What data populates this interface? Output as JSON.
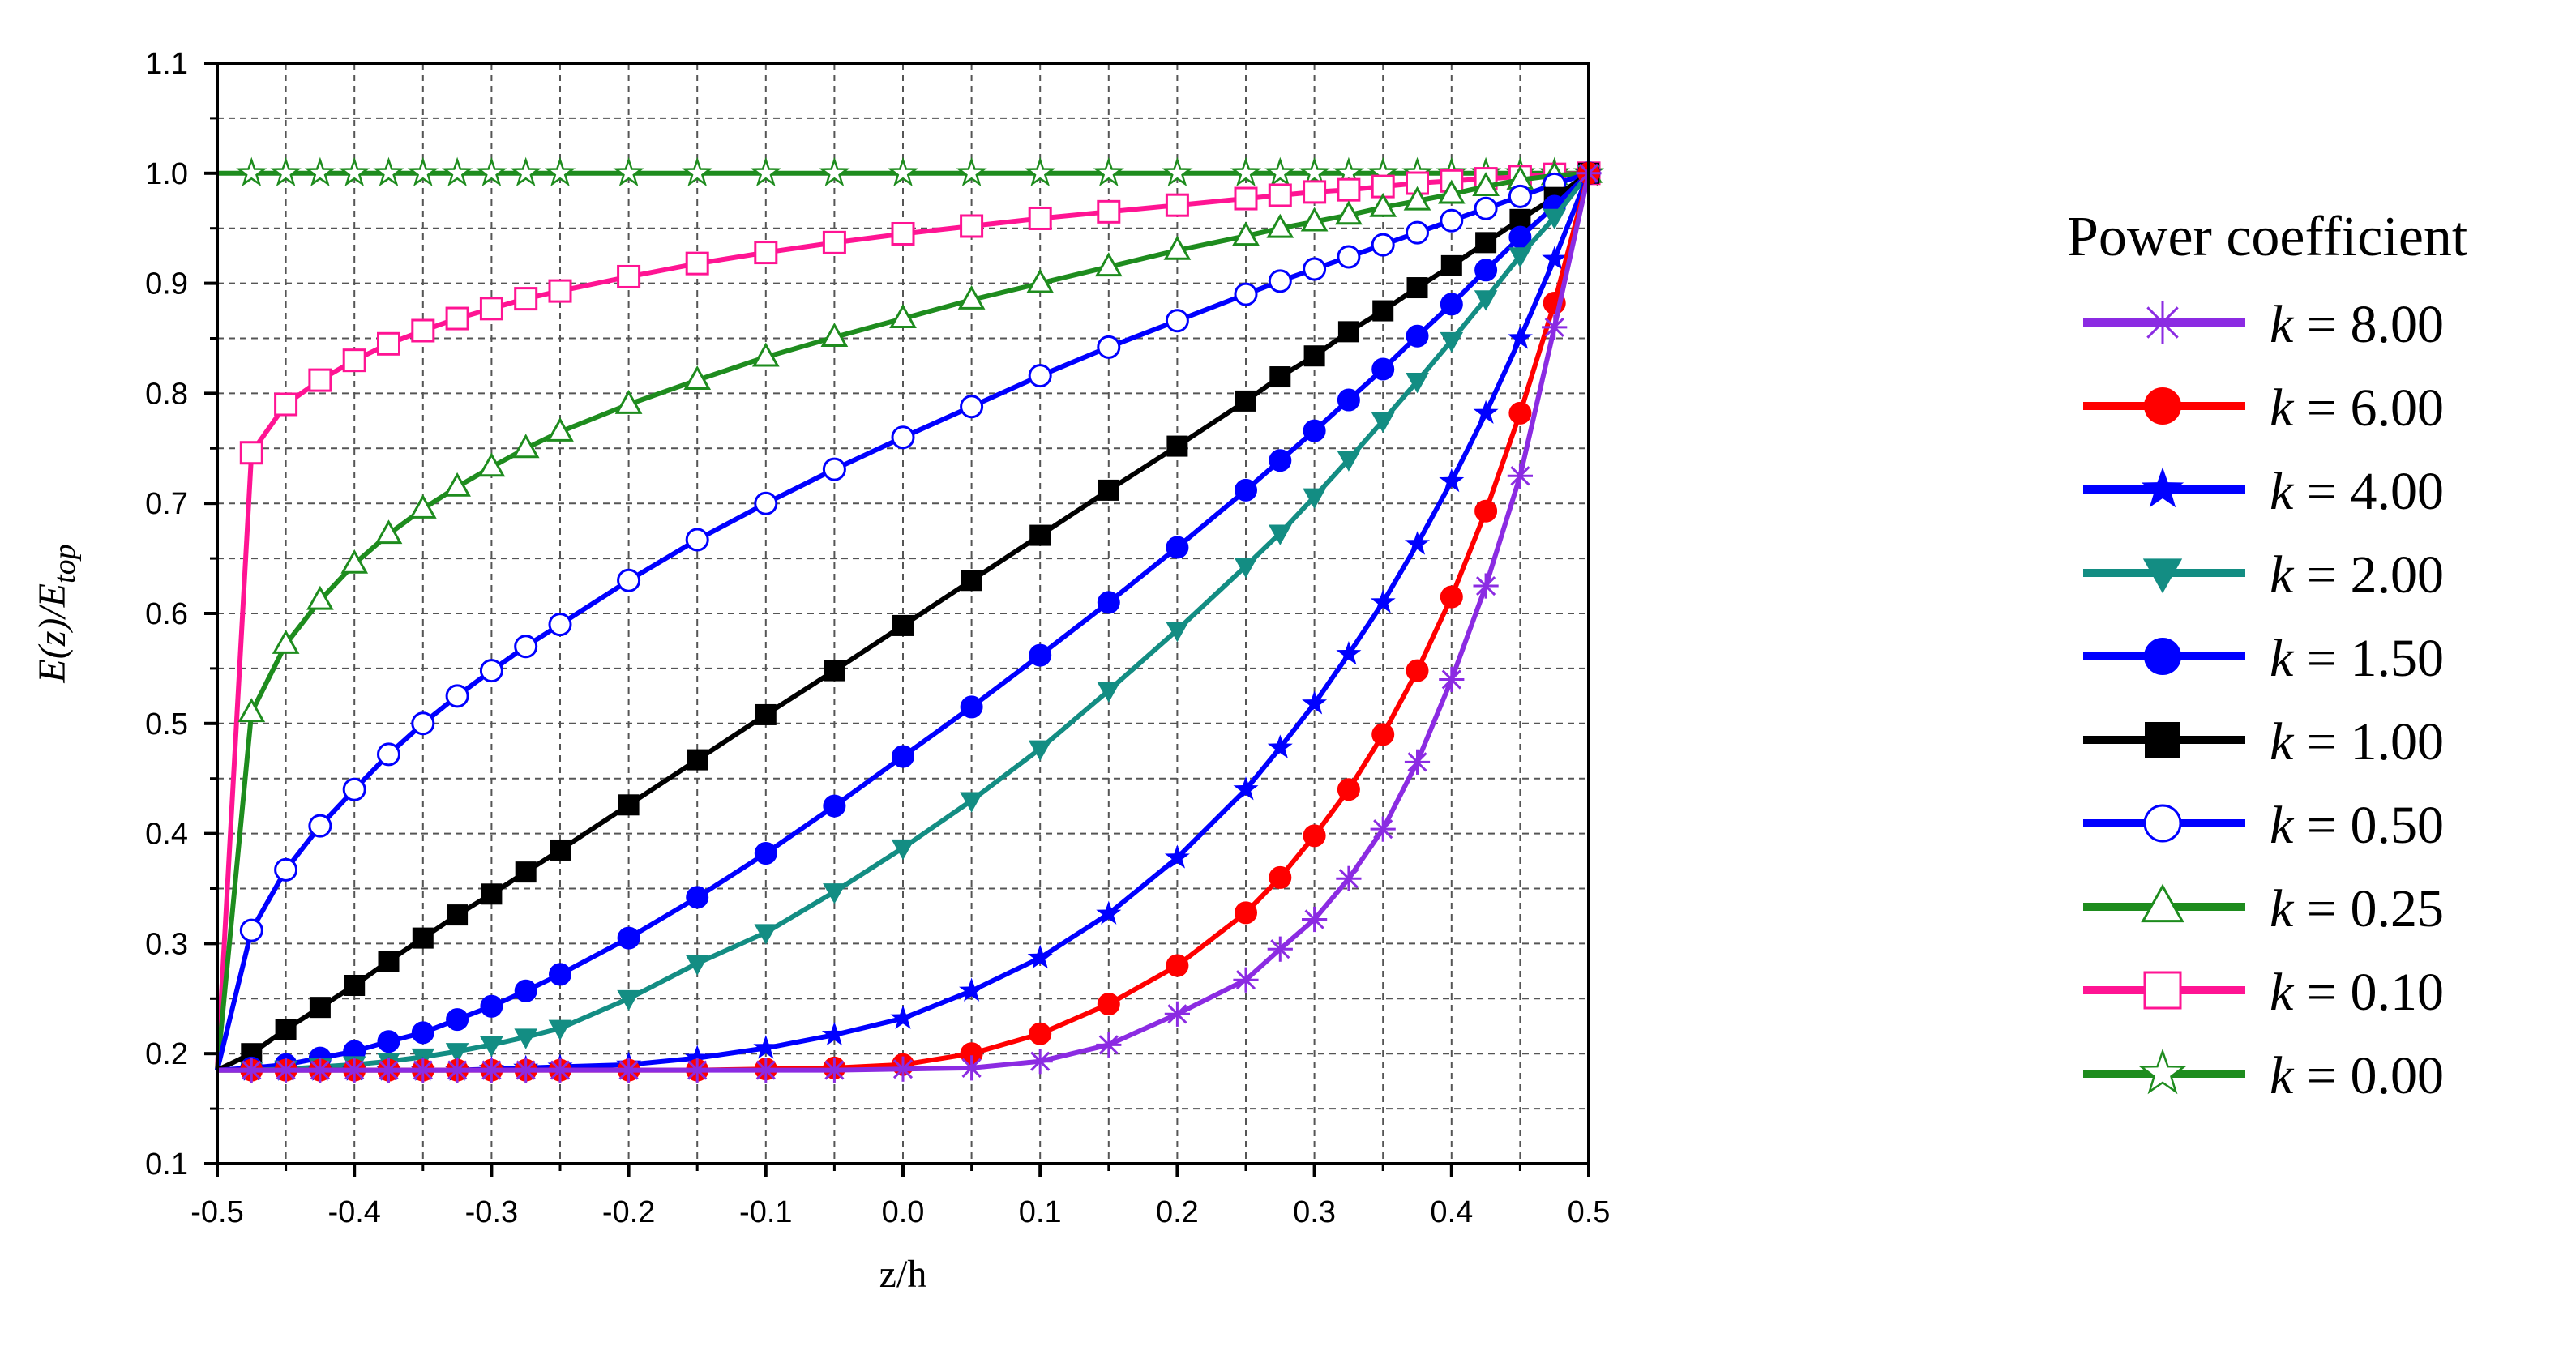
{
  "chart_data": {
    "type": "line",
    "title": "",
    "xlabel": "z/h",
    "ylabel_main": "E(z)/E",
    "ylabel_sub": "top",
    "xlim": [
      -0.5,
      0.5
    ],
    "ylim": [
      0.1,
      1.1
    ],
    "xticks": [
      -0.5,
      -0.4,
      -0.3,
      -0.2,
      -0.1,
      0.0,
      0.1,
      0.2,
      0.3,
      0.4,
      0.5
    ],
    "yticks": [
      0.1,
      0.2,
      0.3,
      0.4,
      0.5,
      0.6,
      0.7,
      0.8,
      0.9,
      1.0,
      1.1
    ],
    "grid": "dashed minor and major",
    "legend_title": "Power coefficient",
    "legend_placement": "right",
    "x": [
      -0.5,
      -0.475,
      -0.45,
      -0.425,
      -0.4,
      -0.375,
      -0.35,
      -0.325,
      -0.3,
      -0.275,
      -0.25,
      -0.2,
      -0.15,
      -0.1,
      -0.05,
      0.0,
      0.05,
      0.1,
      0.15,
      0.2,
      0.25,
      0.275,
      0.3,
      0.325,
      0.35,
      0.375,
      0.4,
      0.425,
      0.45,
      0.475,
      0.5
    ],
    "series": [
      {
        "name": "k = 8.00",
        "k": "8.00",
        "color": "#8b2be2",
        "marker": "asterisk",
        "values": [
          0.185,
          0.185,
          0.185,
          0.185,
          0.185,
          0.185,
          0.185,
          0.185,
          0.185,
          0.185,
          0.185,
          0.185,
          0.185,
          0.185,
          0.185,
          0.186,
          0.187,
          0.193,
          0.208,
          0.236,
          0.267,
          0.295,
          0.322,
          0.359,
          0.404,
          0.465,
          0.54,
          0.625,
          0.725,
          0.86,
          1.0
        ]
      },
      {
        "name": "k = 6.00",
        "k": "6.00",
        "color": "#ff0000",
        "marker": "circle-filled",
        "values": [
          0.185,
          0.185,
          0.185,
          0.185,
          0.185,
          0.185,
          0.185,
          0.185,
          0.185,
          0.185,
          0.185,
          0.185,
          0.185,
          0.186,
          0.187,
          0.19,
          0.2,
          0.218,
          0.245,
          0.28,
          0.328,
          0.36,
          0.398,
          0.44,
          0.49,
          0.548,
          0.615,
          0.693,
          0.782,
          0.882,
          1.0
        ]
      },
      {
        "name": "k = 4.00",
        "k": "4.00",
        "color": "#0000ff",
        "marker": "star-filled",
        "values": [
          0.185,
          0.185,
          0.185,
          0.185,
          0.185,
          0.185,
          0.185,
          0.185,
          0.186,
          0.187,
          0.188,
          0.19,
          0.196,
          0.205,
          0.217,
          0.232,
          0.257,
          0.287,
          0.327,
          0.378,
          0.44,
          0.478,
          0.518,
          0.563,
          0.61,
          0.663,
          0.72,
          0.782,
          0.85,
          0.922,
          1.0
        ]
      },
      {
        "name": "k = 2.00",
        "k": "2.00",
        "color": "#138d83",
        "marker": "triangle-down-filled",
        "values": [
          0.185,
          0.185,
          0.186,
          0.188,
          0.19,
          0.193,
          0.197,
          0.202,
          0.208,
          0.215,
          0.223,
          0.25,
          0.282,
          0.31,
          0.347,
          0.387,
          0.43,
          0.477,
          0.53,
          0.585,
          0.643,
          0.673,
          0.706,
          0.74,
          0.775,
          0.811,
          0.848,
          0.886,
          0.925,
          0.96,
          1.0
        ]
      },
      {
        "name": "k = 1.50",
        "k": "1.50",
        "color": "#0000ff",
        "marker": "circle-filled",
        "values": [
          0.185,
          0.187,
          0.19,
          0.196,
          0.202,
          0.211,
          0.219,
          0.231,
          0.243,
          0.257,
          0.272,
          0.305,
          0.342,
          0.382,
          0.425,
          0.47,
          0.515,
          0.562,
          0.61,
          0.66,
          0.712,
          0.739,
          0.766,
          0.794,
          0.822,
          0.852,
          0.881,
          0.912,
          0.942,
          0.97,
          1.0
        ]
      },
      {
        "name": "k = 1.00",
        "k": "1.00",
        "color": "#000000",
        "marker": "square-filled",
        "values": [
          0.185,
          0.2,
          0.222,
          0.242,
          0.262,
          0.284,
          0.305,
          0.326,
          0.345,
          0.365,
          0.385,
          0.426,
          0.467,
          0.508,
          0.548,
          0.589,
          0.63,
          0.671,
          0.712,
          0.752,
          0.793,
          0.815,
          0.834,
          0.856,
          0.875,
          0.896,
          0.916,
          0.937,
          0.958,
          0.978,
          1.0
        ]
      },
      {
        "name": "k = 0.50",
        "k": "0.50",
        "color": "#0000ff",
        "marker": "circle-open",
        "values": [
          0.185,
          0.312,
          0.367,
          0.407,
          0.44,
          0.472,
          0.5,
          0.525,
          0.548,
          0.57,
          0.59,
          0.63,
          0.667,
          0.7,
          0.731,
          0.76,
          0.788,
          0.816,
          0.842,
          0.866,
          0.89,
          0.902,
          0.913,
          0.924,
          0.935,
          0.946,
          0.957,
          0.968,
          0.979,
          0.99,
          1.0
        ]
      },
      {
        "name": "k = 0.25",
        "k": "0.25",
        "color": "#1e8c1e",
        "marker": "triangle-up-open",
        "values": [
          0.185,
          0.51,
          0.572,
          0.612,
          0.645,
          0.672,
          0.695,
          0.715,
          0.733,
          0.75,
          0.765,
          0.79,
          0.812,
          0.833,
          0.851,
          0.868,
          0.885,
          0.9,
          0.915,
          0.93,
          0.943,
          0.95,
          0.956,
          0.962,
          0.969,
          0.975,
          0.981,
          0.988,
          0.994,
          0.998,
          1.0
        ]
      },
      {
        "name": "k = 0.10",
        "k": "0.10",
        "color": "#ff1493",
        "marker": "square-open",
        "values": [
          0.185,
          0.746,
          0.79,
          0.812,
          0.83,
          0.845,
          0.857,
          0.868,
          0.877,
          0.886,
          0.893,
          0.906,
          0.918,
          0.928,
          0.937,
          0.945,
          0.952,
          0.959,
          0.965,
          0.971,
          0.977,
          0.98,
          0.983,
          0.985,
          0.988,
          0.991,
          0.993,
          0.995,
          0.997,
          0.999,
          1.0
        ]
      },
      {
        "name": "k = 0.00",
        "k": "0.00",
        "color": "#1e8c1e",
        "marker": "star-open",
        "values": [
          1.0,
          1.0,
          1.0,
          1.0,
          1.0,
          1.0,
          1.0,
          1.0,
          1.0,
          1.0,
          1.0,
          1.0,
          1.0,
          1.0,
          1.0,
          1.0,
          1.0,
          1.0,
          1.0,
          1.0,
          1.0,
          1.0,
          1.0,
          1.0,
          1.0,
          1.0,
          1.0,
          1.0,
          1.0,
          1.0,
          1.0
        ]
      }
    ]
  }
}
